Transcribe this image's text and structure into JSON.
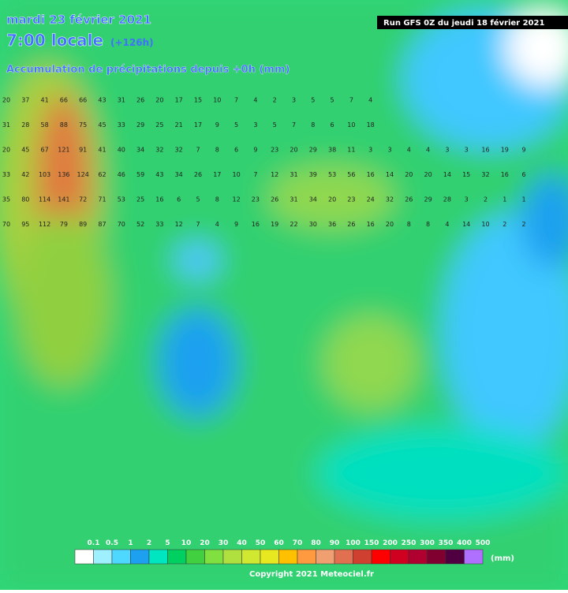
{
  "header": {
    "date": "mardi 23 février 2021",
    "time": "7:00 locale",
    "lead": "(+126h)",
    "subtitle": "Accumulation de précipitations depuis +0h (mm)",
    "run": "Run GFS 0Z du jeudi 18 février 2021"
  },
  "grid": {
    "rows": [
      [
        20,
        37,
        41,
        66,
        66,
        43,
        31,
        26,
        20,
        17,
        15,
        10,
        7,
        4,
        2,
        3,
        5,
        5,
        7,
        4
      ],
      [
        31,
        28,
        58,
        88,
        75,
        45,
        33,
        29,
        25,
        21,
        17,
        9,
        5,
        3,
        5,
        7,
        8,
        6,
        10,
        18
      ],
      [
        20,
        45,
        67,
        121,
        91,
        41,
        40,
        34,
        32,
        32,
        7,
        8,
        6,
        9,
        23,
        20,
        29,
        38,
        11,
        3,
        3,
        4,
        4,
        3,
        3,
        16,
        19,
        9
      ],
      [
        33,
        42,
        103,
        136,
        124,
        62,
        46,
        59,
        43,
        34,
        26,
        17,
        10,
        7,
        12,
        31,
        39,
        53,
        56,
        16,
        14,
        20,
        20,
        14,
        15,
        32,
        16,
        6
      ],
      [
        35,
        80,
        114,
        141,
        72,
        71,
        53,
        25,
        16,
        6,
        5,
        8,
        12,
        23,
        26,
        31,
        34,
        20,
        23,
        24,
        32,
        26,
        29,
        28,
        3,
        2,
        1,
        1
      ],
      [
        70,
        95,
        112,
        79,
        89,
        87,
        70,
        52,
        33,
        12,
        7,
        4,
        9,
        16,
        19,
        22,
        30,
        36,
        26,
        16,
        20,
        8,
        8,
        4,
        14,
        10,
        2,
        2
      ]
    ]
  },
  "legend": {
    "unit": "(mm)",
    "items": [
      {
        "label": "0.1",
        "color": "#ffffff"
      },
      {
        "label": "0.5",
        "color": "#9ff0ff"
      },
      {
        "label": "1",
        "color": "#4fd8ff"
      },
      {
        "label": "2",
        "color": "#1ea0f0"
      },
      {
        "label": "5",
        "color": "#00e6c0"
      },
      {
        "label": "10",
        "color": "#00d060"
      },
      {
        "label": "20",
        "color": "#40d040"
      },
      {
        "label": "30",
        "color": "#80e040"
      },
      {
        "label": "40",
        "color": "#b0e040"
      },
      {
        "label": "50",
        "color": "#d0e830"
      },
      {
        "label": "60",
        "color": "#e8e820"
      },
      {
        "label": "70",
        "color": "#ffc000"
      },
      {
        "label": "80",
        "color": "#ff9a40"
      },
      {
        "label": "90",
        "color": "#f0a070"
      },
      {
        "label": "100",
        "color": "#e07050"
      },
      {
        "label": "150",
        "color": "#d04030"
      },
      {
        "label": "200",
        "color": "#ff0000"
      },
      {
        "label": "250",
        "color": "#d00020"
      },
      {
        "label": "300",
        "color": "#b00030"
      },
      {
        "label": "350",
        "color": "#800030"
      },
      {
        "label": "400",
        "color": "#500040"
      },
      {
        "label": "500",
        "color": "#b070ff"
      }
    ]
  },
  "copyright": "Copyright 2021 Meteociel.fr"
}
